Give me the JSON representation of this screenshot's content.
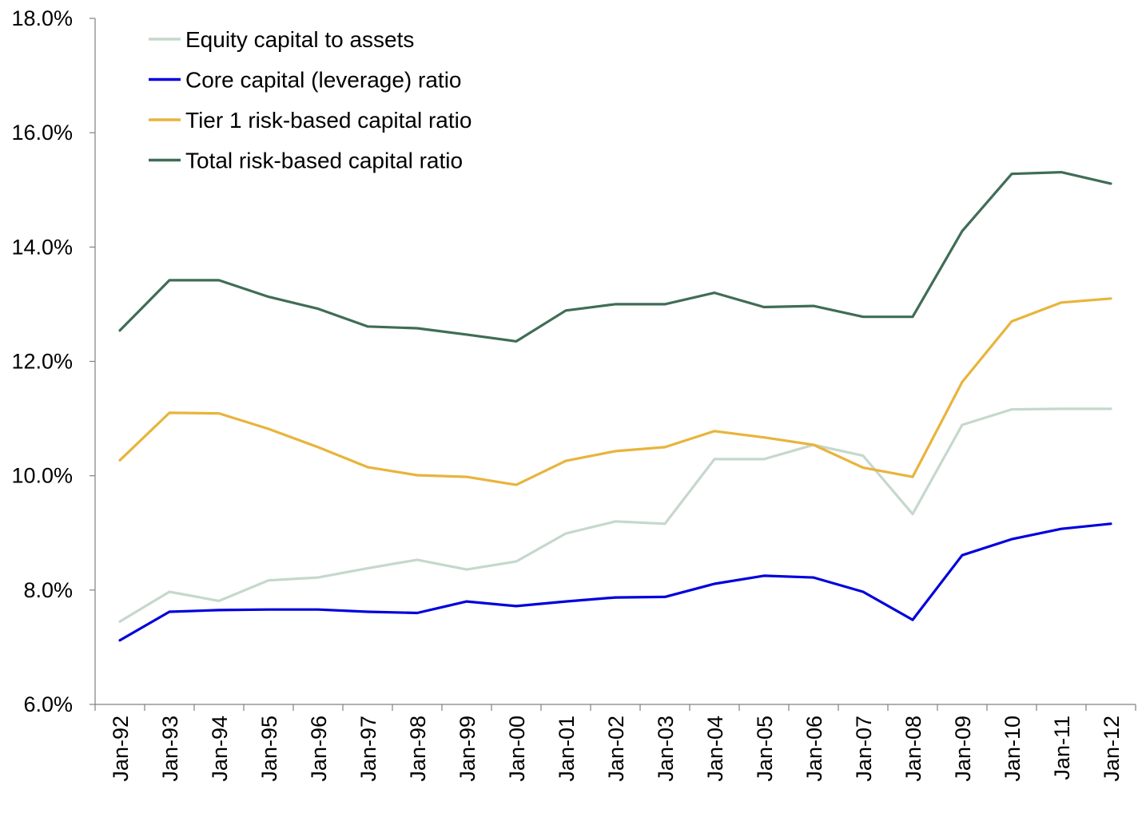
{
  "chart_data": {
    "type": "line",
    "title": "",
    "xlabel": "",
    "ylabel": "",
    "categories": [
      "Jan-92",
      "Jan-93",
      "Jan-94",
      "Jan-95",
      "Jan-96",
      "Jan-97",
      "Jan-98",
      "Jan-99",
      "Jan-00",
      "Jan-01",
      "Jan-02",
      "Jan-03",
      "Jan-04",
      "Jan-05",
      "Jan-06",
      "Jan-07",
      "Jan-08",
      "Jan-09",
      "Jan-10",
      "Jan-11",
      "Jan-12"
    ],
    "ylim": [
      6.0,
      18.0
    ],
    "yticks": [
      6.0,
      8.0,
      10.0,
      12.0,
      14.0,
      16.0,
      18.0
    ],
    "ytick_labels": [
      "6.0%",
      "8.0%",
      "10.0%",
      "12.0%",
      "14.0%",
      "16.0%",
      "18.0%"
    ],
    "grid": false,
    "legend_position": "top-left",
    "series": [
      {
        "name": "Equity capital to assets",
        "color": "#c5d8cc",
        "values": [
          7.45,
          7.97,
          7.81,
          8.17,
          8.22,
          8.38,
          8.53,
          8.36,
          8.5,
          8.99,
          9.2,
          9.16,
          10.29,
          10.29,
          10.54,
          10.35,
          9.33,
          10.89,
          11.16,
          11.17,
          11.17
        ]
      },
      {
        "name": "Core capital (leverage) ratio",
        "color": "#0000dd",
        "values": [
          7.12,
          7.62,
          7.65,
          7.66,
          7.66,
          7.62,
          7.6,
          7.8,
          7.72,
          7.8,
          7.87,
          7.88,
          8.11,
          8.25,
          8.22,
          7.97,
          7.48,
          8.61,
          8.89,
          9.07,
          9.16
        ]
      },
      {
        "name": "Tier 1 risk-based capital ratio",
        "color": "#e8b43c",
        "values": [
          10.27,
          11.1,
          11.09,
          10.82,
          10.5,
          10.15,
          10.01,
          9.98,
          9.84,
          10.26,
          10.43,
          10.5,
          10.78,
          10.67,
          10.54,
          10.14,
          9.98,
          11.64,
          12.7,
          13.03,
          13.1
        ]
      },
      {
        "name": "Total risk-based capital ratio",
        "color": "#3f6d55",
        "values": [
          12.54,
          13.42,
          13.42,
          13.13,
          12.92,
          12.61,
          12.58,
          12.47,
          12.35,
          12.89,
          13.0,
          13.0,
          13.2,
          12.95,
          12.97,
          12.78,
          12.78,
          14.28,
          15.28,
          15.31,
          15.11
        ]
      }
    ]
  }
}
